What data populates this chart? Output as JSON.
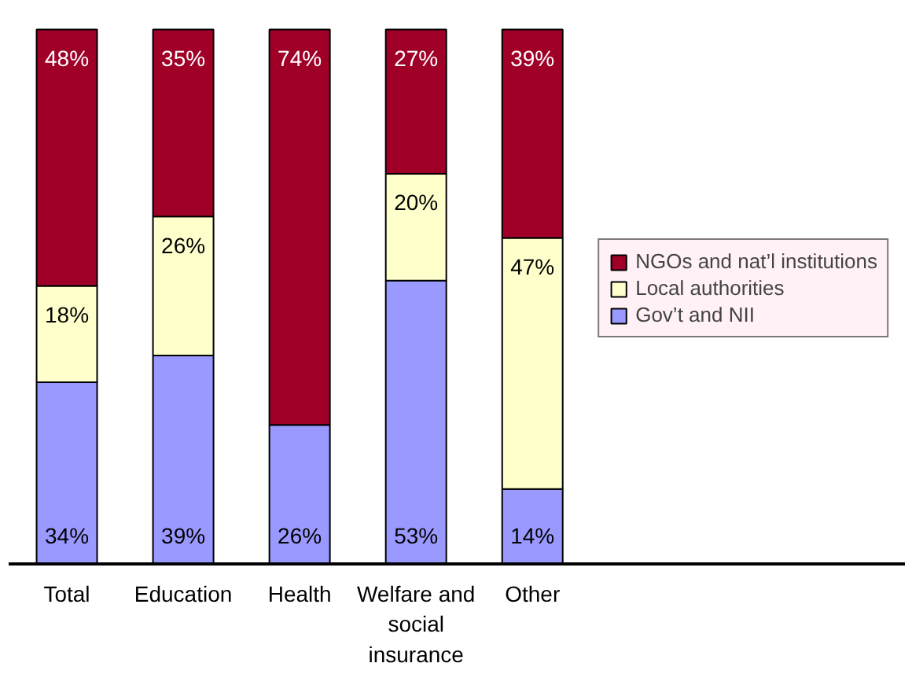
{
  "chart_data": {
    "type": "bar",
    "stacked": true,
    "categories": [
      "Total",
      "Education",
      "Health",
      "Welfare and social insurance",
      "Other"
    ],
    "series": [
      {
        "name": "Gov’t and NII",
        "color": "#9999ff",
        "values": [
          34,
          39,
          26,
          53,
          14
        ],
        "value_labels": [
          "34%",
          "39%",
          "26%",
          "53%",
          "14%"
        ]
      },
      {
        "name": "Local authorities",
        "color": "#ffffcc",
        "values": [
          18,
          26,
          null,
          20,
          47
        ],
        "value_labels": [
          "18%",
          "26%",
          null,
          "20%",
          "47%"
        ]
      },
      {
        "name": "NGOs and nat’l institutions",
        "color": "#a00028",
        "values": [
          48,
          35,
          74,
          27,
          39
        ],
        "value_labels": [
          "48%",
          "35%",
          "74%",
          "27%",
          "39%"
        ]
      }
    ],
    "legend": "right"
  }
}
